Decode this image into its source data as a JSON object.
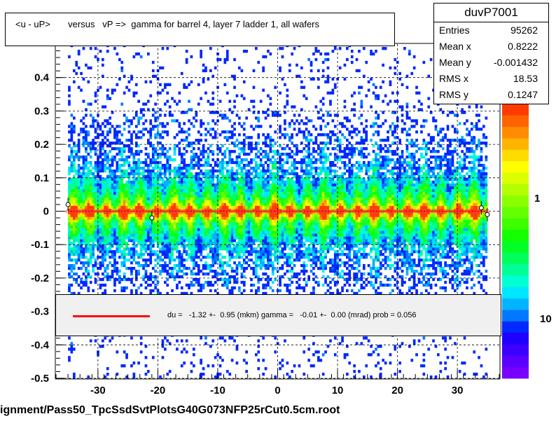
{
  "title": "<u - uP>       versus   vP =>  gamma for barrel 4, layer 7 ladder 1, all wafers",
  "stats": {
    "name": "duvP7001",
    "rows": [
      {
        "label": "Entries",
        "value": "95262"
      },
      {
        "label": "Mean x",
        "value": "0.8222"
      },
      {
        "label": "Mean y",
        "value": "-0.001432"
      },
      {
        "label": "RMS x",
        "value": "18.53"
      },
      {
        "label": "RMS y",
        "value": "0.1247"
      }
    ]
  },
  "legend": {
    "text": "du =   -1.32 +-  0.95 (mkm) gamma =   -0.01 +-  0.00 (mrad) prob = 0.056",
    "line_color": "#ff0000"
  },
  "footer": "ignment/Pass50_TpcSsdSvtPlotsG40G073NFP25rCut0.5cm.root",
  "colors": {
    "palette": [
      "#7700ff",
      "#5a00ff",
      "#3c00ff",
      "#1e00ff",
      "#0028ff",
      "#0078ff",
      "#00b4ff",
      "#00e6ff",
      "#00ffd2",
      "#00ff96",
      "#00ff5a",
      "#00ff28",
      "#14ff00",
      "#3cff00",
      "#64ff00",
      "#8cff00",
      "#b4ff00",
      "#dcff00",
      "#ffff00",
      "#ffdc00",
      "#ffb400",
      "#ff8c00",
      "#ff6400",
      "#ff3c00"
    ],
    "fit_line": "#ff0000"
  },
  "chart_data": {
    "type": "heatmap",
    "title": "<u - uP>       versus   vP =>  gamma for barrel 4, layer 7 ladder 1, all wafers",
    "xlim": [
      -37,
      37
    ],
    "ylim": [
      -0.5,
      0.5
    ],
    "x_ticks": [
      -30,
      -20,
      -10,
      0,
      10,
      20,
      30
    ],
    "y_ticks": [
      -0.5,
      -0.4,
      -0.3,
      -0.2,
      -0.1,
      0,
      0.1,
      0.2,
      0.3,
      0.4
    ],
    "y_tick_labels": [
      "-0.5",
      "-0.4",
      "-0.3",
      "-0.2",
      "-0.1",
      "0",
      "0.1",
      "0.2",
      "0.3",
      "0.4"
    ],
    "colorbar_labels": [
      "1",
      "10"
    ],
    "grid": true,
    "occupied_x_range": [
      -35,
      35
    ],
    "profile_mean": 0.0,
    "profile_points": [
      {
        "x": -35,
        "y": 0.02
      },
      {
        "x": -21,
        "y": -0.02
      },
      {
        "x": 34,
        "y": 0.01
      },
      {
        "x": 35,
        "y": -0.01
      }
    ],
    "fit": {
      "du_mkm": -1.32,
      "du_err": 0.95,
      "gamma_mrad": -0.01,
      "gamma_err": 0.0,
      "prob": 0.056
    }
  }
}
